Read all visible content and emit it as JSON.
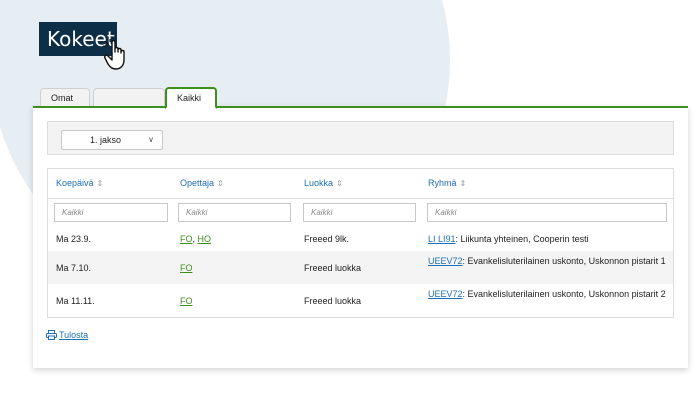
{
  "header": {
    "title": "Kokeet"
  },
  "tabs": [
    {
      "label": "Omat",
      "active": false
    },
    {
      "label": "",
      "active": false
    },
    {
      "label": "Kaikki",
      "active": true
    }
  ],
  "period_select": {
    "value": "1. jakso"
  },
  "table": {
    "columns": [
      "Koepäivä",
      "Opettaja",
      "Luokka",
      "Ryhmä"
    ],
    "filters": {
      "placeholder": "Kaikki"
    },
    "rows": [
      {
        "date": "Ma 23.9.",
        "teachers": [
          "FO",
          "HO"
        ],
        "class": "Freeed 9lk.",
        "group_code": "LI LI91",
        "group_text": ": Liikunta yhteinen, Cooperin testi"
      },
      {
        "date": "Ma 7.10.",
        "teachers": [
          "FO"
        ],
        "class": "Freeed luokka",
        "group_code": "UEEV72",
        "group_text": ": Evankelisluterilainen uskonto, Uskonnon pistarit 1"
      },
      {
        "date": "Ma 11.11.",
        "teachers": [
          "FO"
        ],
        "class": "Freeed luokka",
        "group_code": "UEEV72",
        "group_text": ": Evankelisluterilainen uskonto, Uskonnon pistarit 2"
      }
    ]
  },
  "print_link": {
    "label": "Tulosta"
  },
  "colors": {
    "accent_green": "#3c8f1c",
    "link_blue": "#1f6fb5",
    "header_bg": "#0c2f47",
    "bg_circle": "#e7eef3"
  }
}
